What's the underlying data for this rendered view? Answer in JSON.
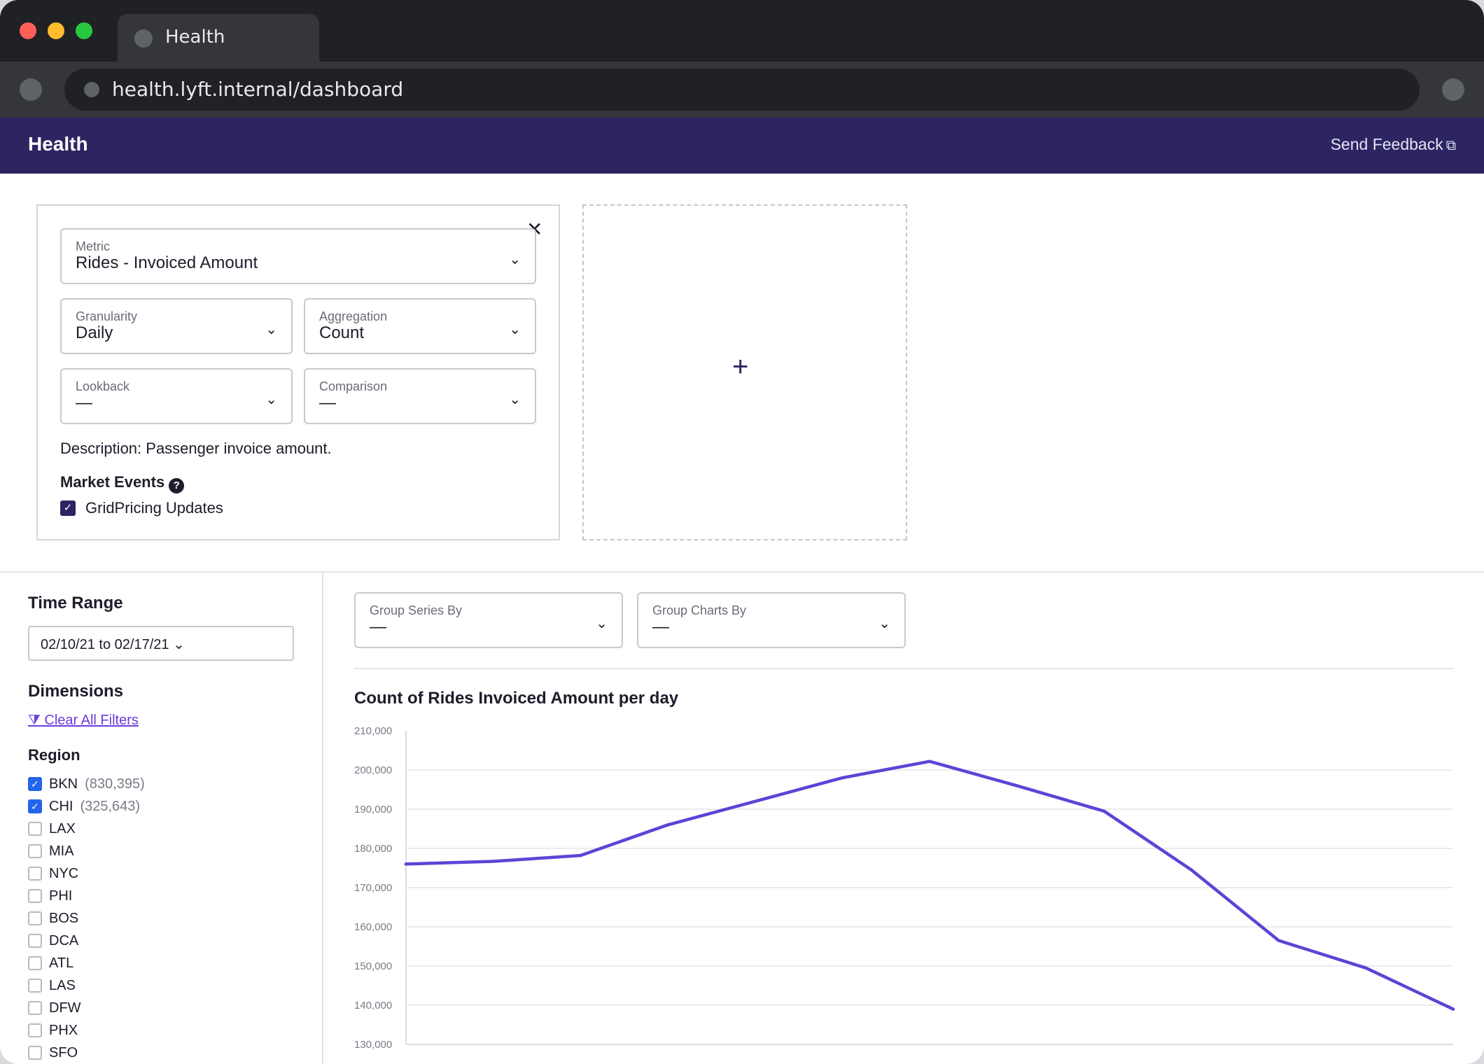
{
  "browser": {
    "tab_title": "Health",
    "url": "health.lyft.internal/dashboard"
  },
  "app": {
    "title": "Health",
    "feedback_label": "Send Feedback",
    "feedback_icon": "external-link-icon",
    "header_color": "#2c2562"
  },
  "metric_card": {
    "close_symbol": "✕",
    "metric": {
      "label": "Metric",
      "value": "Rides - Invoiced Amount"
    },
    "granularity": {
      "label": "Granularity",
      "value": "Daily"
    },
    "aggregation": {
      "label": "Aggregation",
      "value": "Count"
    },
    "lookback": {
      "label": "Lookback",
      "value": "—"
    },
    "comparison": {
      "label": "Comparison",
      "value": "—"
    },
    "description": "Description: Passenger invoice amount.",
    "market_events_title": "Market Events",
    "events": [
      {
        "label": "GridPricing Updates",
        "checked": true
      }
    ]
  },
  "add_card": {
    "symbol": "+"
  },
  "sidebar": {
    "time_range_title": "Time Range",
    "time_range_value": "02/10/21 to 02/17/21",
    "dimensions_title": "Dimensions",
    "clear_filters": "Clear All Filters",
    "region_title": "Region",
    "regions": [
      {
        "name": "BKN",
        "count": "(830,395)",
        "checked": true
      },
      {
        "name": "CHI",
        "count": "(325,643)",
        "checked": true
      },
      {
        "name": "LAX",
        "count": "",
        "checked": false
      },
      {
        "name": "MIA",
        "count": "",
        "checked": false
      },
      {
        "name": "NYC",
        "count": "",
        "checked": false
      },
      {
        "name": "PHI",
        "count": "",
        "checked": false
      },
      {
        "name": "BOS",
        "count": "",
        "checked": false
      },
      {
        "name": "DCA",
        "count": "",
        "checked": false
      },
      {
        "name": "ATL",
        "count": "",
        "checked": false
      },
      {
        "name": "LAS",
        "count": "",
        "checked": false
      },
      {
        "name": "DFW",
        "count": "",
        "checked": false
      },
      {
        "name": "PHX",
        "count": "",
        "checked": false
      },
      {
        "name": "SFO",
        "count": "",
        "checked": false
      }
    ]
  },
  "group": {
    "series": {
      "label": "Group Series By",
      "value": "—"
    },
    "charts": {
      "label": "Group Charts By",
      "value": "—"
    }
  },
  "chart_data": {
    "type": "line",
    "title": "Count of Rides Invoiced Amount per day",
    "xlabel": "",
    "ylabel": "",
    "ylim": [
      130000,
      210000
    ],
    "yticks": [
      130000,
      140000,
      150000,
      160000,
      170000,
      180000,
      190000,
      200000,
      210000
    ],
    "ytick_labels": [
      "130,000",
      "140,000",
      "150,000",
      "160,000",
      "170,000",
      "180,000",
      "190,000",
      "200,000",
      "210,000"
    ],
    "grid": true,
    "color": "#5b45d6",
    "x": [
      0,
      1,
      2,
      3,
      4,
      5,
      6,
      7,
      8,
      9,
      10,
      11,
      12
    ],
    "series": [
      {
        "values": [
          176000,
          176700,
          178200,
          186000,
          192000,
          198000,
          202200,
          196000,
          189500,
          174500,
          156500,
          149500,
          139000
        ]
      }
    ]
  }
}
